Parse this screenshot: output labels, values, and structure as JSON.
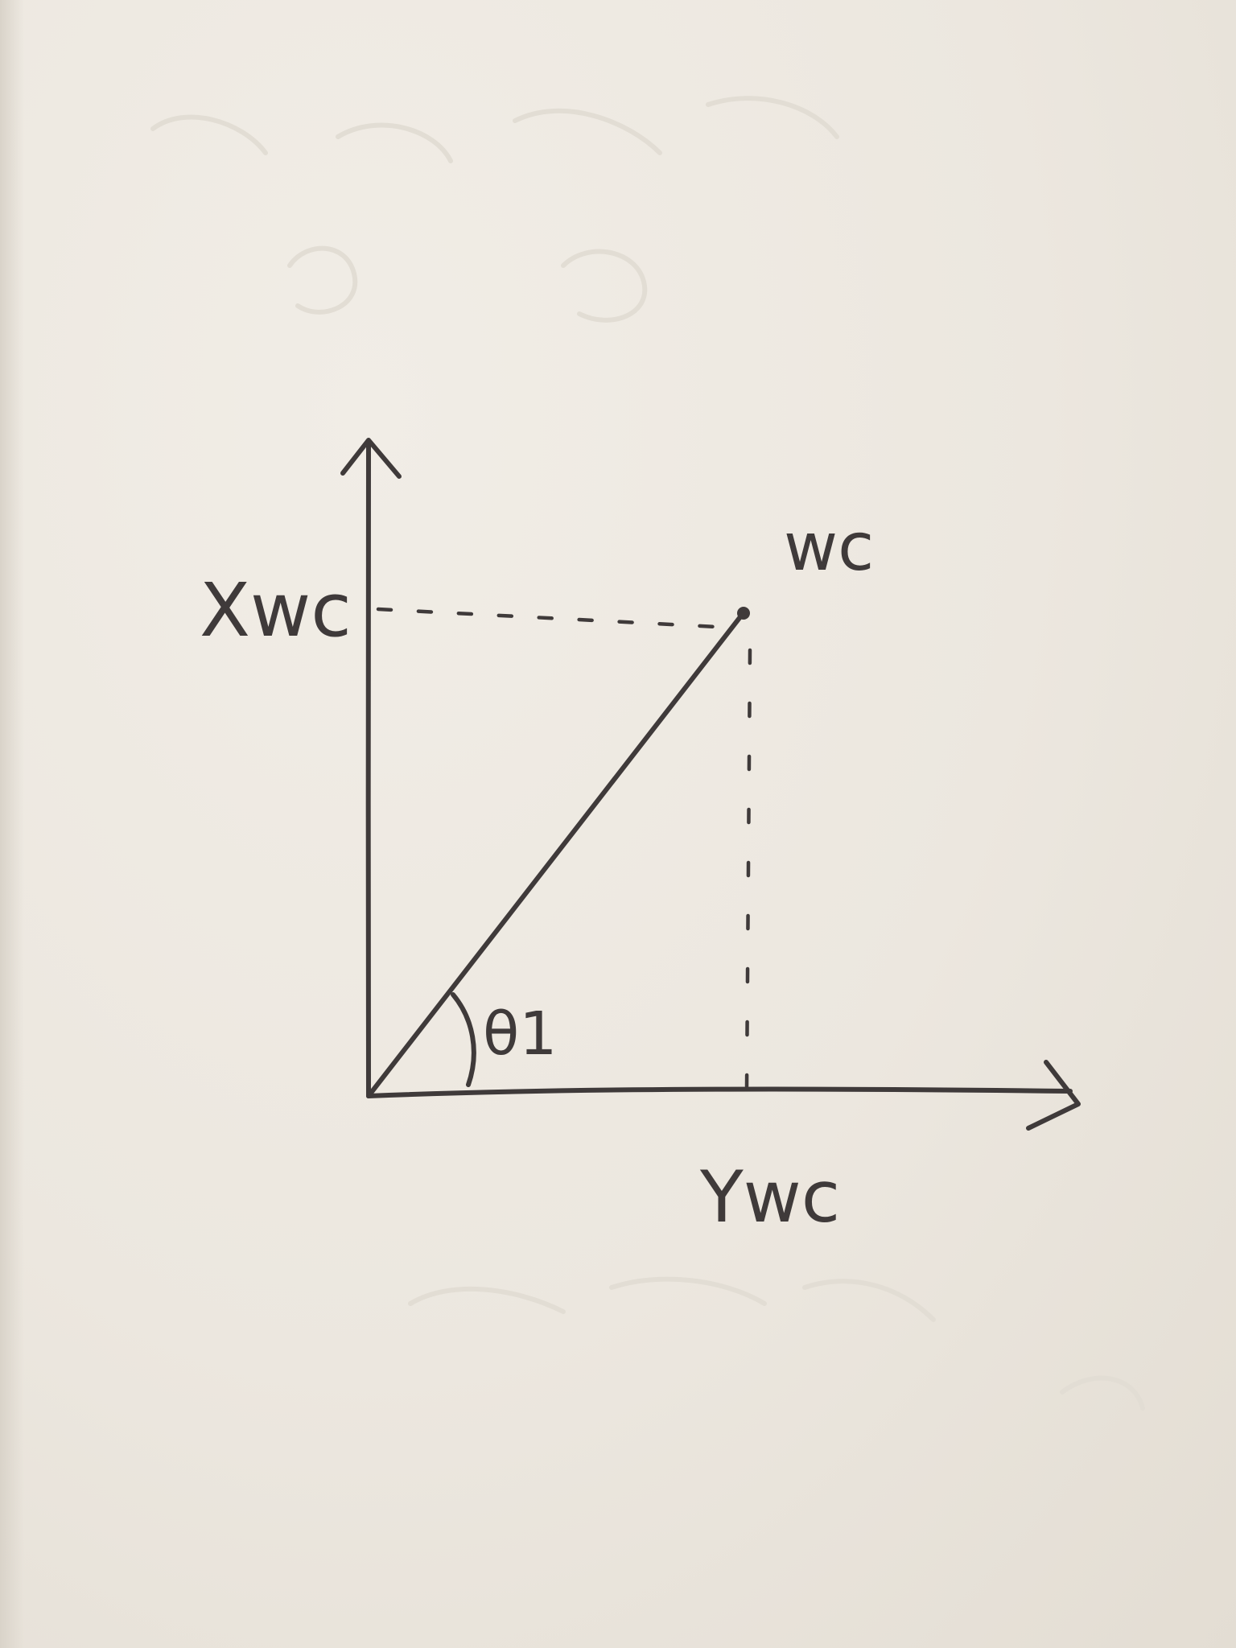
{
  "diagram": {
    "point_label": "wc",
    "x_axis_label": "Xwc",
    "y_axis_label": "Ywc",
    "angle_label": "θ1"
  },
  "colors": {
    "ink": "#3f3a3a",
    "paper": "#ece7df"
  }
}
